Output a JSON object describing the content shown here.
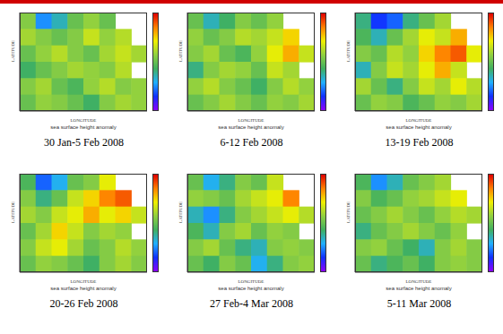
{
  "chart_data": [
    {
      "type": "heatmap",
      "title": "30 Jan-5 Feb 2008",
      "xlabel": "LONGITUDE",
      "ylabel": "LATITUDE",
      "caption": "sea surface height anomaly",
      "tick_labels": false,
      "cells": [
        [
          2,
          -10,
          -6,
          0,
          3,
          0,
          null,
          null
        ],
        [
          4,
          2,
          0,
          2,
          6,
          3,
          5,
          null
        ],
        [
          0,
          3,
          5,
          2,
          0,
          4,
          6,
          4
        ],
        [
          -3,
          0,
          2,
          4,
          3,
          2,
          5,
          null
        ],
        [
          2,
          4,
          0,
          -2,
          3,
          5,
          2,
          3
        ],
        [
          0,
          3,
          2,
          0,
          -3,
          2,
          4,
          3
        ]
      ],
      "colorbar": {
        "range": [
          -20,
          20
        ],
        "colors": [
          "#8b00ff",
          "#1030ff",
          "#20b0ff",
          "#40b060",
          "#90d040",
          "#f0f000",
          "#ff8000",
          "#e00000"
        ]
      }
    },
    {
      "type": "heatmap",
      "title": "6-12 Feb 2008",
      "xlabel": "LONGITUDE",
      "ylabel": "LATITUDE",
      "caption": "sea surface height anomaly",
      "tick_labels": false,
      "cells": [
        [
          0,
          -6,
          -3,
          2,
          0,
          3,
          null,
          null
        ],
        [
          3,
          0,
          2,
          5,
          4,
          6,
          10,
          null
        ],
        [
          2,
          4,
          0,
          -2,
          3,
          8,
          12,
          6
        ],
        [
          -4,
          2,
          4,
          3,
          0,
          6,
          4,
          null
        ],
        [
          3,
          5,
          2,
          0,
          -3,
          2,
          5,
          3
        ],
        [
          0,
          2,
          4,
          2,
          0,
          3,
          2,
          4
        ]
      ],
      "colorbar": {
        "range": [
          -20,
          20
        ],
        "colors": [
          "#8b00ff",
          "#1030ff",
          "#20b0ff",
          "#40b060",
          "#90d040",
          "#f0f000",
          "#ff8000",
          "#e00000"
        ]
      }
    },
    {
      "type": "heatmap",
      "title": "13-19 Feb 2008",
      "xlabel": "LONGITUDE",
      "ylabel": "LATITUDE",
      "caption": "sea surface height anomaly",
      "tick_labels": false,
      "cells": [
        [
          -4,
          -14,
          -12,
          -4,
          0,
          4,
          null,
          null
        ],
        [
          -2,
          -6,
          0,
          4,
          8,
          6,
          12,
          null
        ],
        [
          2,
          0,
          5,
          3,
          10,
          14,
          16,
          8
        ],
        [
          -6,
          2,
          6,
          4,
          8,
          12,
          6,
          null
        ],
        [
          4,
          0,
          -4,
          2,
          6,
          4,
          8,
          5
        ],
        [
          0,
          3,
          2,
          -2,
          0,
          3,
          2,
          4
        ]
      ],
      "colorbar": {
        "range": [
          -20,
          20
        ],
        "colors": [
          "#8b00ff",
          "#1030ff",
          "#20b0ff",
          "#40b060",
          "#90d040",
          "#f0f000",
          "#ff8000",
          "#e00000"
        ]
      }
    },
    {
      "type": "heatmap",
      "title": "20-26 Feb 2008",
      "xlabel": "LONGITUDE",
      "ylabel": "LATITUDE",
      "caption": "sea surface height anomaly",
      "tick_labels": false,
      "cells": [
        [
          -2,
          -12,
          -8,
          0,
          2,
          8,
          null,
          null
        ],
        [
          2,
          -4,
          0,
          6,
          10,
          14,
          16,
          null
        ],
        [
          4,
          2,
          6,
          8,
          12,
          8,
          10,
          6
        ],
        [
          0,
          4,
          10,
          6,
          2,
          4,
          3,
          null
        ],
        [
          2,
          6,
          8,
          4,
          0,
          2,
          5,
          3
        ],
        [
          0,
          3,
          2,
          0,
          -3,
          2,
          4,
          2
        ]
      ],
      "colorbar": {
        "range": [
          -20,
          20
        ],
        "colors": [
          "#8b00ff",
          "#1030ff",
          "#20b0ff",
          "#40b060",
          "#90d040",
          "#f0f000",
          "#ff8000",
          "#e00000"
        ]
      }
    },
    {
      "type": "heatmap",
      "title": "27 Feb-4 Mar 2008",
      "xlabel": "LONGITUDE",
      "ylabel": "LATITUDE",
      "caption": "sea surface height anomaly",
      "tick_labels": false,
      "cells": [
        [
          0,
          -8,
          -4,
          2,
          0,
          6,
          null,
          null
        ],
        [
          3,
          2,
          0,
          4,
          6,
          8,
          14,
          null
        ],
        [
          -6,
          -10,
          -4,
          2,
          4,
          6,
          8,
          5
        ],
        [
          -2,
          -6,
          2,
          4,
          0,
          3,
          2,
          null
        ],
        [
          2,
          4,
          0,
          -4,
          -6,
          2,
          3,
          2
        ],
        [
          0,
          -3,
          2,
          0,
          -8,
          -4,
          2,
          3
        ]
      ],
      "colorbar": {
        "range": [
          -20,
          20
        ],
        "colors": [
          "#8b00ff",
          "#1030ff",
          "#20b0ff",
          "#40b060",
          "#90d040",
          "#f0f000",
          "#ff8000",
          "#e00000"
        ]
      }
    },
    {
      "type": "heatmap",
      "title": "5-11 Mar 2008",
      "xlabel": "LONGITUDE",
      "ylabel": "LATITUDE",
      "caption": "sea surface height anomaly",
      "tick_labels": false,
      "cells": [
        [
          -2,
          -10,
          -6,
          0,
          2,
          4,
          null,
          null
        ],
        [
          2,
          -2,
          0,
          3,
          4,
          6,
          8,
          null
        ],
        [
          0,
          2,
          4,
          2,
          0,
          3,
          5,
          4
        ],
        [
          -4,
          0,
          2,
          4,
          2,
          0,
          3,
          null
        ],
        [
          2,
          3,
          0,
          -3,
          -6,
          2,
          4,
          2
        ],
        [
          0,
          -4,
          -2,
          0,
          -3,
          2,
          3,
          2
        ]
      ],
      "colorbar": {
        "range": [
          -20,
          20
        ],
        "colors": [
          "#8b00ff",
          "#1030ff",
          "#20b0ff",
          "#40b060",
          "#90d040",
          "#f0f000",
          "#ff8000",
          "#e00000"
        ]
      }
    }
  ]
}
